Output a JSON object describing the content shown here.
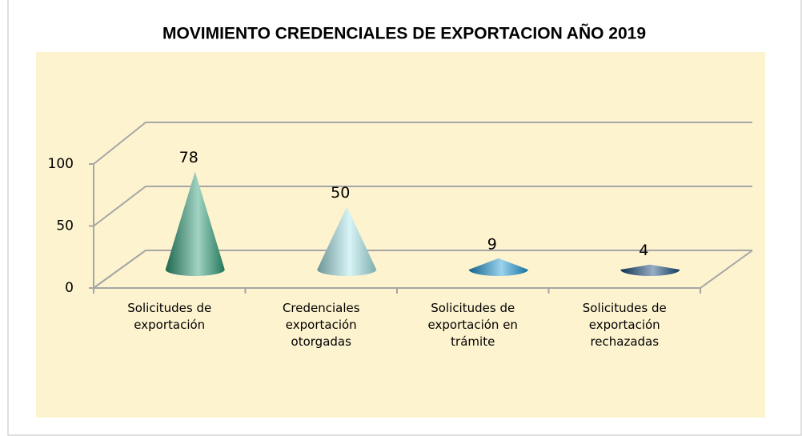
{
  "chart_data": {
    "type": "cone3d",
    "title": "MOVIMIENTO CREDENCIALES DE EXPORTACION AÑO 2019",
    "categories": [
      "Solicitudes de exportación",
      "Credenciales exportación otorgadas",
      "Solicitudes de exportación en trámite",
      "Solicitudes de exportación rechazadas"
    ],
    "values": [
      78,
      50,
      9,
      4
    ],
    "colors": [
      "#2f9e78",
      "#a8e6ea",
      "#1e9ad6",
      "#174c7c"
    ],
    "ylim": [
      0,
      100
    ],
    "yticks": [
      0,
      50,
      100
    ],
    "grid": true
  }
}
